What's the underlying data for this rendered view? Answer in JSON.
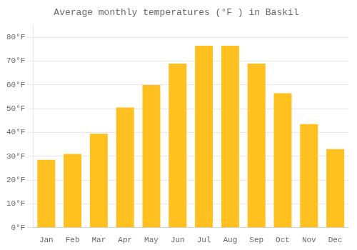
{
  "chart_data": {
    "type": "bar",
    "title": "Average monthly temperatures (°F ) in Baskil",
    "categories": [
      "Jan",
      "Feb",
      "Mar",
      "Apr",
      "May",
      "Jun",
      "Jul",
      "Aug",
      "Sep",
      "Oct",
      "Nov",
      "Dec"
    ],
    "values": [
      28.5,
      31.0,
      39.5,
      50.5,
      60.0,
      69.0,
      76.5,
      76.5,
      69.0,
      56.5,
      43.5,
      33.0
    ],
    "color": "#FFC020",
    "ylim": [
      0,
      85
    ],
    "yticks": [
      {
        "value": 0,
        "label": "0°F"
      },
      {
        "value": 10,
        "label": "10°F"
      },
      {
        "value": 20,
        "label": "20°F"
      },
      {
        "value": 30,
        "label": "30°F"
      },
      {
        "value": 40,
        "label": "40°F"
      },
      {
        "value": 50,
        "label": "50°F"
      },
      {
        "value": 60,
        "label": "60°F"
      },
      {
        "value": 70,
        "label": "70°F"
      },
      {
        "value": 80,
        "label": "80°F"
      }
    ],
    "grid": true
  }
}
